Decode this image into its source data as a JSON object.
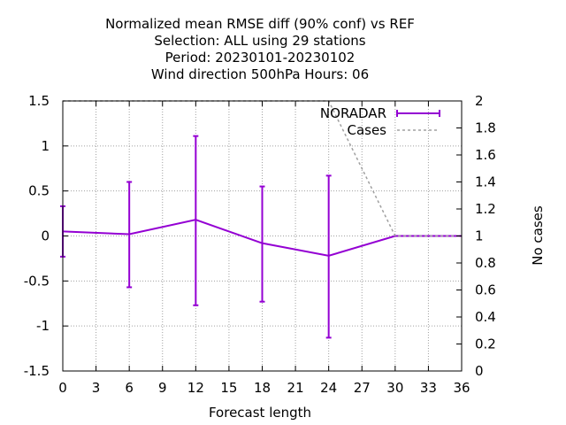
{
  "chart_data": {
    "type": "line",
    "title_lines": [
      "Normalized mean RMSE diff (90% conf) vs REF",
      "Selection: ALL using    29 stations",
      "Period: 20230101-20230102",
      "Wind direction 500hPa   Hours:  06"
    ],
    "xlabel": "Forecast length",
    "ylabel": "",
    "y2label": "No cases",
    "xlim": [
      0,
      36
    ],
    "ylim": [
      -1.5,
      1.5
    ],
    "y2lim": [
      0,
      2
    ],
    "x_ticks": [
      0,
      3,
      6,
      9,
      12,
      15,
      18,
      21,
      24,
      27,
      30,
      33,
      36
    ],
    "y_ticks": [
      -1.5,
      -1,
      -0.5,
      0,
      0.5,
      1,
      1.5
    ],
    "y_tick_labels": [
      "-1.5",
      "-1",
      "-0.5",
      "0",
      "0.5",
      "1",
      "1.5"
    ],
    "y2_ticks": [
      0,
      0.2,
      0.4,
      0.6,
      0.8,
      1,
      1.2,
      1.4,
      1.6,
      1.8,
      2
    ],
    "y2_tick_labels": [
      "0",
      "0.2",
      "0.4",
      "0.6",
      "0.8",
      "1",
      "1.2",
      "1.4",
      "1.6",
      "1.8",
      "2"
    ],
    "grid": true,
    "legend_position": "top-right",
    "series": [
      {
        "name": "NORADAR",
        "color": "#9400d3",
        "style": "errorbars",
        "axis": "y",
        "x": [
          0,
          6,
          12,
          18,
          24,
          30,
          36
        ],
        "y": [
          0.05,
          0.02,
          0.18,
          -0.08,
          -0.22,
          0.0,
          0.0
        ],
        "err_low": [
          -0.23,
          -0.57,
          -0.77,
          -0.73,
          -1.13,
          0.0,
          0.0
        ],
        "err_high": [
          0.33,
          0.6,
          1.11,
          0.55,
          0.67,
          0.0,
          0.0
        ]
      },
      {
        "name": "Cases",
        "color": "#a0a0a0",
        "style": "dashed",
        "axis": "y2",
        "x": [
          0,
          6,
          12,
          18,
          24,
          30,
          36
        ],
        "y": [
          2,
          2,
          2,
          2,
          2,
          1,
          1
        ]
      }
    ]
  }
}
